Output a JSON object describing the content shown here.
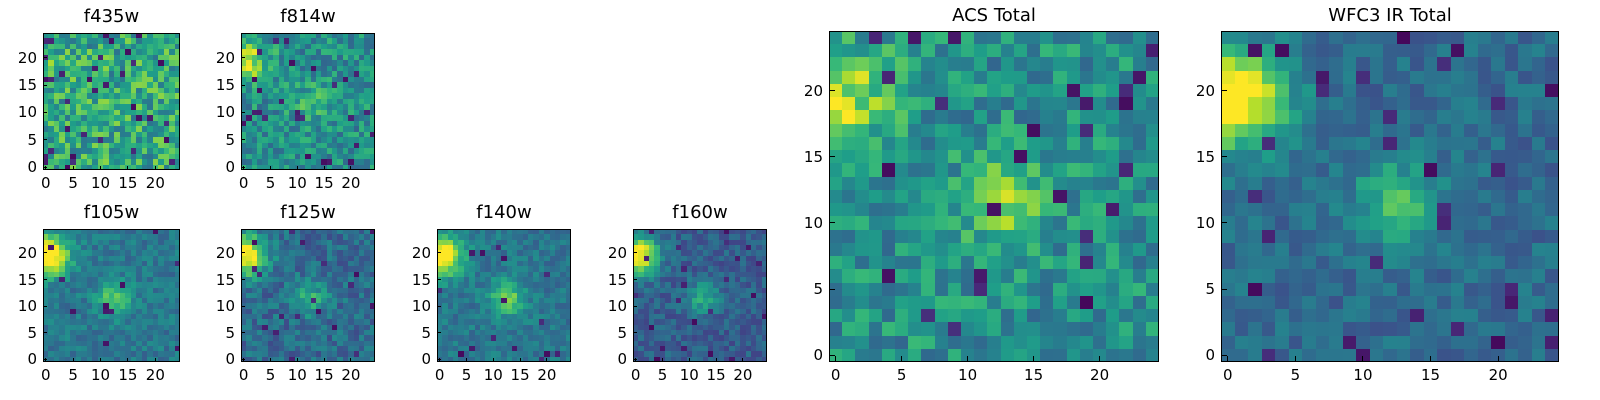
{
  "figure": {
    "colormap": "viridis"
  },
  "chart_data": [
    {
      "id": "f435w",
      "type": "heatmap",
      "title": "f435w",
      "xlim": [
        -0.5,
        24.5
      ],
      "ylim": [
        -0.5,
        24.5
      ],
      "xticks": [
        0,
        5,
        10,
        15,
        20
      ],
      "yticks": [
        0,
        5,
        10,
        15,
        20
      ],
      "seed": 11,
      "blob_main": 0.05,
      "blob_side": 0.05,
      "noise": 0.45,
      "base": 0.6,
      "dark_prob": 0.05
    },
    {
      "id": "f814w",
      "type": "heatmap",
      "title": "f814w",
      "xlim": [
        -0.5,
        24.5
      ],
      "ylim": [
        -0.5,
        24.5
      ],
      "xticks": [
        0,
        5,
        10,
        15,
        20
      ],
      "yticks": [
        0,
        5,
        10,
        15,
        20
      ],
      "seed": 23,
      "blob_main": 0.45,
      "blob_side": 0.2,
      "noise": 0.35,
      "base": 0.5,
      "dark_prob": 0.04
    },
    {
      "id": "f105w",
      "type": "heatmap",
      "title": "f105w",
      "xlim": [
        -0.5,
        24.5
      ],
      "ylim": [
        -0.5,
        24.5
      ],
      "xticks": [
        0,
        5,
        10,
        15,
        20
      ],
      "yticks": [
        0,
        5,
        10,
        15,
        20
      ],
      "seed": 37,
      "blob_main": 0.75,
      "blob_side": 0.35,
      "noise": 0.2,
      "base": 0.4,
      "dark_prob": 0.02
    },
    {
      "id": "f125w",
      "type": "heatmap",
      "title": "f125w",
      "xlim": [
        -0.5,
        24.5
      ],
      "ylim": [
        -0.5,
        24.5
      ],
      "xticks": [
        0,
        5,
        10,
        15,
        20
      ],
      "yticks": [
        0,
        5,
        10,
        15,
        20
      ],
      "seed": 41,
      "blob_main": 0.7,
      "blob_side": 0.3,
      "noise": 0.25,
      "base": 0.35,
      "dark_prob": 0.04
    },
    {
      "id": "f140w",
      "type": "heatmap",
      "title": "f140w",
      "xlim": [
        -0.5,
        24.5
      ],
      "ylim": [
        -0.5,
        24.5
      ],
      "xticks": [
        0,
        5,
        10,
        15,
        20
      ],
      "yticks": [
        0,
        5,
        10,
        15,
        20
      ],
      "seed": 53,
      "blob_main": 0.7,
      "blob_side": 0.4,
      "noise": 0.2,
      "base": 0.4,
      "dark_prob": 0.03
    },
    {
      "id": "f160w",
      "type": "heatmap",
      "title": "f160w",
      "xlim": [
        -0.5,
        24.5
      ],
      "ylim": [
        -0.5,
        24.5
      ],
      "xticks": [
        0,
        5,
        10,
        15,
        20
      ],
      "yticks": [
        0,
        5,
        10,
        15,
        20
      ],
      "seed": 67,
      "blob_main": 0.75,
      "blob_side": 0.3,
      "noise": 0.2,
      "base": 0.3,
      "dark_prob": 0.03
    },
    {
      "id": "acs-total",
      "type": "heatmap",
      "title": "ACS Total",
      "xlim": [
        -0.5,
        24.5
      ],
      "ylim": [
        -0.5,
        24.5
      ],
      "xticks": [
        0,
        5,
        10,
        15,
        20
      ],
      "yticks": [
        0,
        5,
        10,
        15,
        20
      ],
      "seed": 79,
      "blob_main": 0.4,
      "blob_side": 0.3,
      "noise": 0.35,
      "base": 0.5,
      "dark_prob": 0.05
    },
    {
      "id": "wfc3-ir-total",
      "type": "heatmap",
      "title": "WFC3 IR Total",
      "xlim": [
        -0.5,
        24.5
      ],
      "ylim": [
        -0.5,
        24.5
      ],
      "xticks": [
        0,
        5,
        10,
        15,
        20
      ],
      "yticks": [
        0,
        5,
        10,
        15,
        20
      ],
      "seed": 97,
      "blob_main": 0.75,
      "blob_side": 0.35,
      "noise": 0.2,
      "base": 0.35,
      "dark_prob": 0.05
    }
  ]
}
